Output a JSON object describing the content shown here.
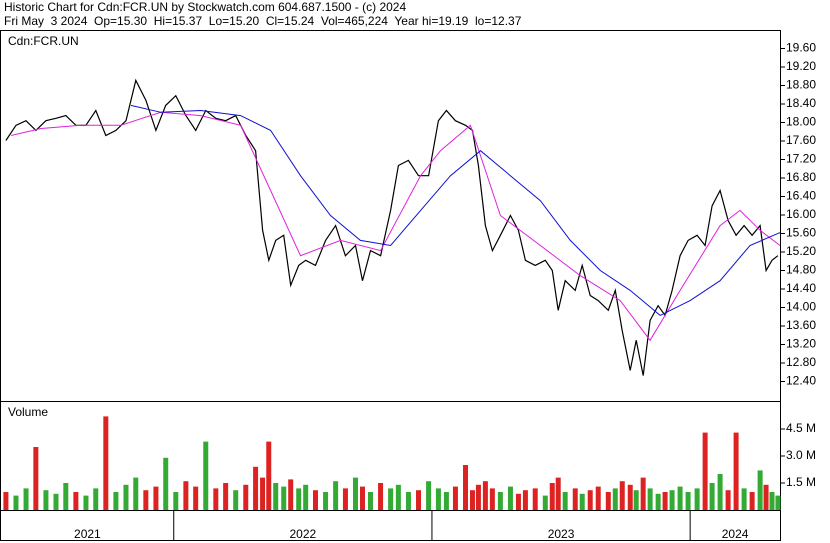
{
  "chart_data": [
    {
      "type": "line",
      "title": "Historic Chart for Cdn:FCR.UN by Stockwatch.com 604.687.1500 - (c) 2024",
      "subtitle": "Fri May  3 2024  Op=15.30  Hi=15.37  Lo=15.20  Cl=15.24  Vol=465,224  Year hi=19.19  lo=12.37",
      "label": "Cdn:FCR.UN",
      "xlim": [
        2021.331,
        2024.348
      ],
      "ylim": [
        12.0,
        20.0
      ],
      "yticks": [
        {
          "value": 19.6,
          "label": "19.60"
        },
        {
          "value": 19.2,
          "label": "19.20"
        },
        {
          "value": 18.8,
          "label": "18.80"
        },
        {
          "value": 18.4,
          "label": "18.40"
        },
        {
          "value": 18.0,
          "label": "18.00"
        },
        {
          "value": 17.6,
          "label": "17.60"
        },
        {
          "value": 17.2,
          "label": "17.20"
        },
        {
          "value": 16.8,
          "label": "16.80"
        },
        {
          "value": 16.4,
          "label": "16.40"
        },
        {
          "value": 16.0,
          "label": "16.00"
        },
        {
          "value": 15.6,
          "label": "15.60"
        },
        {
          "value": 15.2,
          "label": "15.20"
        },
        {
          "value": 14.8,
          "label": "14.80"
        },
        {
          "value": 14.4,
          "label": "14.40"
        },
        {
          "value": 14.0,
          "label": "14.00"
        },
        {
          "value": 13.6,
          "label": "13.60"
        },
        {
          "value": 13.2,
          "label": "13.20"
        },
        {
          "value": 12.8,
          "label": "12.80"
        },
        {
          "value": 12.4,
          "label": "12.40"
        }
      ],
      "series": [
        {
          "color": "#000000",
          "x": [
            2021.35,
            2021.389,
            2021.428,
            2021.466,
            2021.505,
            2021.544,
            2021.582,
            2021.621,
            2021.66,
            2021.698,
            2021.737,
            2021.776,
            2021.815,
            2021.853,
            2021.892,
            2021.931,
            2021.969,
            2022.008,
            2022.047,
            2022.085,
            2022.124,
            2022.163,
            2022.201,
            2022.24,
            2022.279,
            2022.317,
            2022.344,
            2022.368,
            2022.395,
            2022.426,
            2022.453,
            2022.484,
            2022.511,
            2022.549,
            2022.588,
            2022.627,
            2022.665,
            2022.704,
            2022.731,
            2022.762,
            2022.801,
            2022.84,
            2022.87,
            2022.909,
            2022.948,
            2022.987,
            2023.025,
            2023.056,
            2023.091,
            2023.13,
            2023.157,
            2023.18,
            2023.207,
            2023.234,
            2023.265,
            2023.304,
            2023.335,
            2023.362,
            2023.4,
            2023.439,
            2023.466,
            2023.489,
            2023.516,
            2023.555,
            2023.582,
            2023.613,
            2023.644,
            2023.683,
            2023.71,
            2023.737,
            2023.768,
            2023.791,
            2023.818,
            2023.845,
            2023.876,
            2023.903,
            2023.93,
            2023.961,
            2023.992,
            2024.027,
            2024.058,
            2024.085,
            2024.116,
            2024.147,
            2024.178,
            2024.209,
            2024.24,
            2024.271,
            2024.294,
            2024.317,
            2024.34
          ],
          "values": [
            17.61,
            17.94,
            18.04,
            17.83,
            18.04,
            18.09,
            18.15,
            17.94,
            17.94,
            18.26,
            17.72,
            17.83,
            18.04,
            18.91,
            18.48,
            17.83,
            18.37,
            18.58,
            18.15,
            17.83,
            18.26,
            18.09,
            18.04,
            18.15,
            17.72,
            17.39,
            15.67,
            15.02,
            15.45,
            15.56,
            14.48,
            14.91,
            15.02,
            14.91,
            15.45,
            15.77,
            15.12,
            15.34,
            14.58,
            15.23,
            15.12,
            16.1,
            17.07,
            17.18,
            16.85,
            16.85,
            18.04,
            18.26,
            18.04,
            17.94,
            17.83,
            17.07,
            15.77,
            15.23,
            15.56,
            15.99,
            15.67,
            15.02,
            14.91,
            15.02,
            14.8,
            13.94,
            14.58,
            14.37,
            14.91,
            14.26,
            14.15,
            13.94,
            14.37,
            13.5,
            12.64,
            13.29,
            12.53,
            13.72,
            14.04,
            13.83,
            14.37,
            15.12,
            15.45,
            15.56,
            15.34,
            16.2,
            16.53,
            15.88,
            15.56,
            15.77,
            15.56,
            15.77,
            14.8,
            15.02,
            15.12
          ]
        },
        {
          "color": "#e020e0",
          "x": [
            2021.37,
            2021.486,
            2021.64,
            2021.795,
            2021.95,
            2022.105,
            2022.259,
            2022.375,
            2022.491,
            2022.646,
            2022.801,
            2022.956,
            2023.033,
            2023.149,
            2023.265,
            2023.42,
            2023.574,
            2023.729,
            2023.845,
            2023.961,
            2024.116,
            2024.193,
            2024.271,
            2024.348
          ],
          "values": [
            17.72,
            17.87,
            17.94,
            17.94,
            18.22,
            18.15,
            17.94,
            16.53,
            15.12,
            15.45,
            15.23,
            16.85,
            17.39,
            17.94,
            15.99,
            15.34,
            14.69,
            14.15,
            13.29,
            14.37,
            15.77,
            16.1,
            15.67,
            15.34
          ]
        },
        {
          "color": "#1010d0",
          "x": [
            2021.834,
            2021.95,
            2022.105,
            2022.259,
            2022.375,
            2022.491,
            2022.607,
            2022.723,
            2022.84,
            2022.956,
            2023.072,
            2023.188,
            2023.304,
            2023.42,
            2023.536,
            2023.652,
            2023.768,
            2023.884,
            2024.0,
            2024.116,
            2024.232,
            2024.348
          ],
          "values": [
            18.37,
            18.22,
            18.26,
            18.15,
            17.83,
            16.85,
            15.99,
            15.45,
            15.34,
            16.1,
            16.85,
            17.39,
            16.85,
            16.31,
            15.45,
            14.8,
            14.37,
            13.83,
            14.15,
            14.58,
            15.34,
            15.62
          ]
        }
      ]
    },
    {
      "type": "bar",
      "label": "Volume",
      "xlim": [
        2021.331,
        2024.348
      ],
      "xticks": [
        {
          "value": 2021,
          "label": "2021"
        },
        {
          "value": 2022,
          "label": "2022"
        },
        {
          "value": 2023,
          "label": "2023"
        },
        {
          "value": 2024,
          "label": "2024"
        }
      ],
      "ylim": [
        0,
        6.0
      ],
      "yticks": [
        {
          "value": 4.5,
          "label": "4.5 M"
        },
        {
          "value": 3.0,
          "label": "3.0 M"
        },
        {
          "value": 1.5,
          "label": "1.5 M"
        }
      ],
      "up_color": "#33aa33",
      "down_color": "#dd2222",
      "x": [
        2021.35,
        2021.389,
        2021.428,
        2021.466,
        2021.505,
        2021.544,
        2021.582,
        2021.621,
        2021.66,
        2021.698,
        2021.737,
        2021.776,
        2021.815,
        2021.853,
        2021.892,
        2021.931,
        2021.969,
        2022.008,
        2022.047,
        2022.085,
        2022.124,
        2022.163,
        2022.201,
        2022.24,
        2022.279,
        2022.317,
        2022.344,
        2022.368,
        2022.395,
        2022.426,
        2022.453,
        2022.484,
        2022.511,
        2022.549,
        2022.588,
        2022.627,
        2022.665,
        2022.704,
        2022.731,
        2022.762,
        2022.801,
        2022.84,
        2022.87,
        2022.909,
        2022.948,
        2022.987,
        2023.025,
        2023.056,
        2023.091,
        2023.13,
        2023.157,
        2023.18,
        2023.207,
        2023.234,
        2023.265,
        2023.304,
        2023.335,
        2023.362,
        2023.4,
        2023.439,
        2023.466,
        2023.489,
        2023.516,
        2023.555,
        2023.582,
        2023.613,
        2023.644,
        2023.683,
        2023.71,
        2023.737,
        2023.768,
        2023.791,
        2023.818,
        2023.845,
        2023.876,
        2023.903,
        2023.93,
        2023.961,
        2023.992,
        2024.027,
        2024.058,
        2024.085,
        2024.116,
        2024.147,
        2024.178,
        2024.209,
        2024.24,
        2024.271,
        2024.294,
        2024.317,
        2024.34
      ],
      "values": [
        1.0,
        0.8,
        1.2,
        3.5,
        1.1,
        0.9,
        1.5,
        1.0,
        0.8,
        1.2,
        5.2,
        1.0,
        1.4,
        1.8,
        1.1,
        1.3,
        2.9,
        1.0,
        1.6,
        1.3,
        3.8,
        1.2,
        1.5,
        1.1,
        1.4,
        2.4,
        1.8,
        3.8,
        1.5,
        1.3,
        1.7,
        1.2,
        1.4,
        1.1,
        1.0,
        1.6,
        1.2,
        1.8,
        1.3,
        1.0,
        1.5,
        1.2,
        1.4,
        1.0,
        1.1,
        1.6,
        1.2,
        1.0,
        1.3,
        2.5,
        1.1,
        1.4,
        1.6,
        1.2,
        1.0,
        1.3,
        0.9,
        1.1,
        1.2,
        0.8,
        1.5,
        1.8,
        1.0,
        1.2,
        0.9,
        1.1,
        1.3,
        1.0,
        1.2,
        1.6,
        1.4,
        1.1,
        1.8,
        1.2,
        0.9,
        1.0,
        1.1,
        1.3,
        1.0,
        1.2,
        4.3,
        1.5,
        2.0,
        1.1,
        4.3,
        1.2,
        1.0,
        2.2,
        1.4,
        1.0,
        0.8
      ]
    }
  ]
}
